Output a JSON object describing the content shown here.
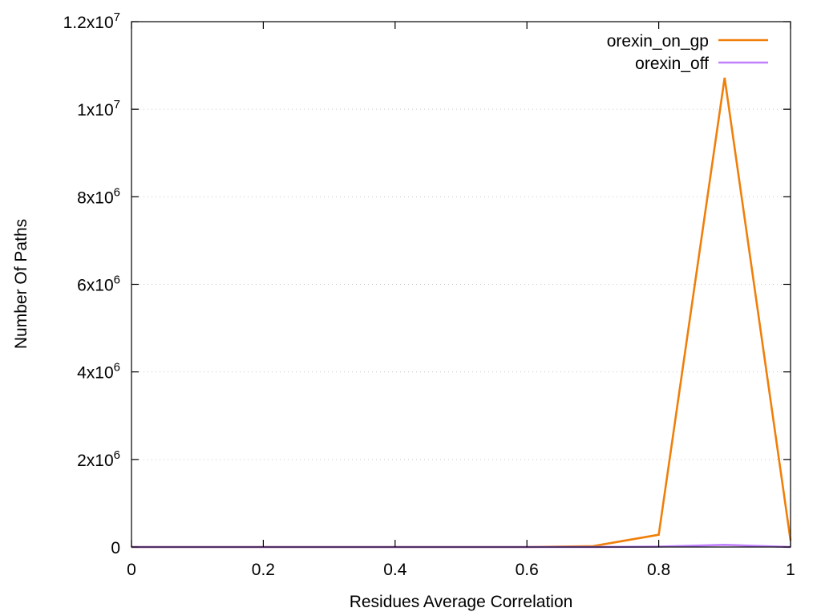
{
  "chart_data": {
    "type": "line",
    "xlabel": "Residues Average Correlation",
    "ylabel": "Number Of Paths",
    "xlim": [
      0,
      1
    ],
    "ylim": [
      0,
      12000000
    ],
    "x_ticks": [
      {
        "value": 0,
        "label": "0"
      },
      {
        "value": 0.2,
        "label": "0.2"
      },
      {
        "value": 0.4,
        "label": "0.4"
      },
      {
        "value": 0.6,
        "label": "0.6"
      },
      {
        "value": 0.8,
        "label": "0.8"
      },
      {
        "value": 1,
        "label": "1"
      }
    ],
    "y_ticks": [
      {
        "value": 0,
        "mantissa": "0",
        "exp": ""
      },
      {
        "value": 2000000,
        "mantissa": "2x10",
        "exp": "6"
      },
      {
        "value": 4000000,
        "mantissa": "4x10",
        "exp": "6"
      },
      {
        "value": 6000000,
        "mantissa": "6x10",
        "exp": "6"
      },
      {
        "value": 8000000,
        "mantissa": "8x10",
        "exp": "6"
      },
      {
        "value": 10000000,
        "mantissa": "1x10",
        "exp": "7"
      },
      {
        "value": 12000000,
        "mantissa": "1.2x10",
        "exp": "7"
      }
    ],
    "grid": "horizontal dotted",
    "legend_position": "top-right",
    "series": [
      {
        "name": "orexin_on_gp",
        "color": "#f07f0a",
        "x": [
          0,
          0.1,
          0.2,
          0.3,
          0.4,
          0.5,
          0.6,
          0.7,
          0.8,
          0.9,
          1.0
        ],
        "y": [
          0,
          0,
          0,
          0,
          0,
          0,
          0,
          20000,
          280000,
          10720000,
          150000
        ]
      },
      {
        "name": "orexin_off",
        "color": "#c080ff",
        "x": [
          0,
          0.1,
          0.2,
          0.3,
          0.4,
          0.5,
          0.6,
          0.7,
          0.8,
          0.9,
          1.0
        ],
        "y": [
          0,
          0,
          0,
          0,
          0,
          0,
          0,
          0,
          10000,
          50000,
          0
        ]
      }
    ]
  }
}
